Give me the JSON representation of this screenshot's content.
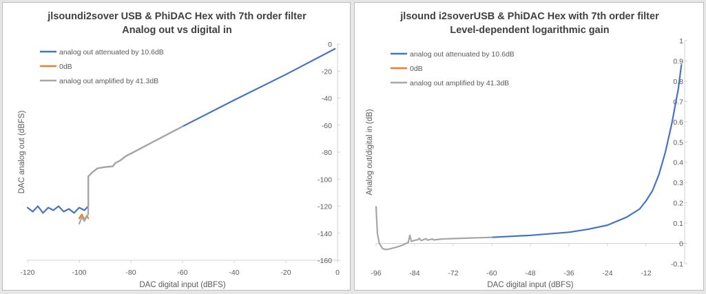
{
  "chart_data": [
    {
      "type": "line",
      "title": "jlsoundi2sover USB & PhiDAC Hex with 7th order filter",
      "subtitle": "Analog out vs digital in",
      "xlabel": "DAC digital input (dBFS)",
      "ylabel": "DAC analog out (dBFS)",
      "xlim": [
        -120,
        0
      ],
      "ylim": [
        -160,
        0
      ],
      "x_ticks": [
        -120,
        -100,
        -80,
        -60,
        -40,
        -20,
        0
      ],
      "y_ticks": [
        0,
        -20,
        -40,
        -60,
        -80,
        -100,
        -120,
        -140,
        -160
      ],
      "y_axis_side": "right",
      "grid": false,
      "legend": "top-left",
      "series": [
        {
          "name": "analog out attenuated by 10.6dB",
          "color": "#4472c4",
          "points": [
            [
              -120,
              -121
            ],
            [
              -118,
              -124
            ],
            [
              -116,
              -120
            ],
            [
              -114,
              -125
            ],
            [
              -112,
              -121
            ],
            [
              -110,
              -123
            ],
            [
              -108,
              -120
            ],
            [
              -106,
              -124
            ],
            [
              -104,
              -122
            ],
            [
              -102,
              -125
            ],
            [
              -100,
              -121
            ],
            [
              -98,
              -123
            ],
            [
              -96.5,
              -120
            ],
            [
              -96.5,
              -98
            ],
            [
              -96,
              -97
            ],
            [
              -95,
              -95
            ],
            [
              -93,
              -92
            ],
            [
              -90,
              -91
            ],
            [
              -87,
              -90.5
            ],
            [
              -86,
              -88
            ],
            [
              -84,
              -86
            ],
            [
              -82,
              -83
            ],
            [
              -80,
              -81
            ],
            [
              -70,
              -71
            ],
            [
              -60,
              -61
            ],
            [
              -40,
              -41.5
            ],
            [
              -20,
              -22.5
            ],
            [
              -1,
              -3.5
            ]
          ]
        },
        {
          "name": "0dB",
          "color": "#ed7d31",
          "points": [
            [
              -100,
              -129
            ],
            [
              -99,
              -126
            ],
            [
              -98,
              -130
            ],
            [
              -97,
              -127
            ],
            [
              -96.5,
              -129
            ]
          ]
        },
        {
          "name": "analog out amplified by 41.3dB",
          "color": "#a5a5a5",
          "points": [
            [
              -100,
              -133
            ],
            [
              -99,
              -128
            ],
            [
              -98,
              -131
            ],
            [
              -97,
              -127
            ],
            [
              -96.5,
              -126
            ],
            [
              -96.5,
              -98
            ],
            [
              -96,
              -97
            ],
            [
              -95,
              -95
            ],
            [
              -93,
              -92
            ],
            [
              -90,
              -91
            ],
            [
              -87,
              -90.5
            ],
            [
              -86,
              -88
            ],
            [
              -84,
              -86
            ],
            [
              -82,
              -83
            ],
            [
              -80,
              -81
            ],
            [
              -70,
              -71
            ],
            [
              -60,
              -61
            ]
          ]
        }
      ]
    },
    {
      "type": "line",
      "title": "jlsound i2soverUSB & PhiDAC Hex with 7th order filter",
      "subtitle": "Level-dependent logarithmic gain",
      "xlabel": "DAC digital input (dBFS)",
      "ylabel": "Analog out/digital in (dB)",
      "xlim": [
        -96,
        0
      ],
      "ylim": [
        -0.1,
        1
      ],
      "x_ticks": [
        -96,
        -84,
        -72,
        -60,
        -48,
        -36,
        -24,
        -12
      ],
      "y_ticks": [
        1,
        0.9,
        0.8,
        0.7,
        0.6,
        0.5,
        0.4,
        0.3,
        0.2,
        0.1,
        0,
        -0.1
      ],
      "y_axis_side": "right",
      "grid": false,
      "legend": "top-left",
      "series": [
        {
          "name": "analog out attenuated by 10.6dB",
          "color": "#4472c4",
          "points": [
            [
              -60,
              0.03
            ],
            [
              -48,
              0.04
            ],
            [
              -36,
              0.055
            ],
            [
              -30,
              0.07
            ],
            [
              -24,
              0.09
            ],
            [
              -18,
              0.13
            ],
            [
              -14,
              0.17
            ],
            [
              -12,
              0.21
            ],
            [
              -10,
              0.26
            ],
            [
              -8,
              0.34
            ],
            [
              -6,
              0.45
            ],
            [
              -4,
              0.59
            ],
            [
              -2,
              0.76
            ],
            [
              -1,
              0.88
            ]
          ]
        },
        {
          "name": "0dB",
          "color": "#ed7d31",
          "points": [
            [
              -96,
              0.18
            ],
            [
              -96,
              0.17
            ]
          ]
        },
        {
          "name": "analog out amplified by 41.3dB",
          "color": "#a5a5a5",
          "points": [
            [
              -96,
              0.18
            ],
            [
              -95.6,
              0.05
            ],
            [
              -95,
              0.0
            ],
            [
              -94,
              -0.025
            ],
            [
              -93,
              -0.03
            ],
            [
              -92,
              -0.028
            ],
            [
              -90,
              -0.02
            ],
            [
              -88,
              -0.01
            ],
            [
              -86,
              0.005
            ],
            [
              -85.5,
              0.04
            ],
            [
              -85,
              0.01
            ],
            [
              -84,
              0.015
            ],
            [
              -83,
              0.018
            ],
            [
              -82.5,
              0.025
            ],
            [
              -82,
              0.014
            ],
            [
              -81,
              0.02
            ],
            [
              -80.5,
              0.024
            ],
            [
              -80,
              0.016
            ],
            [
              -79,
              0.02
            ],
            [
              -78.5,
              0.022
            ],
            [
              -78,
              0.017
            ],
            [
              -76,
              0.021
            ],
            [
              -74,
              0.023
            ],
            [
              -72,
              0.024
            ],
            [
              -68,
              0.026
            ],
            [
              -64,
              0.028
            ],
            [
              -60,
              0.03
            ]
          ]
        }
      ]
    }
  ]
}
